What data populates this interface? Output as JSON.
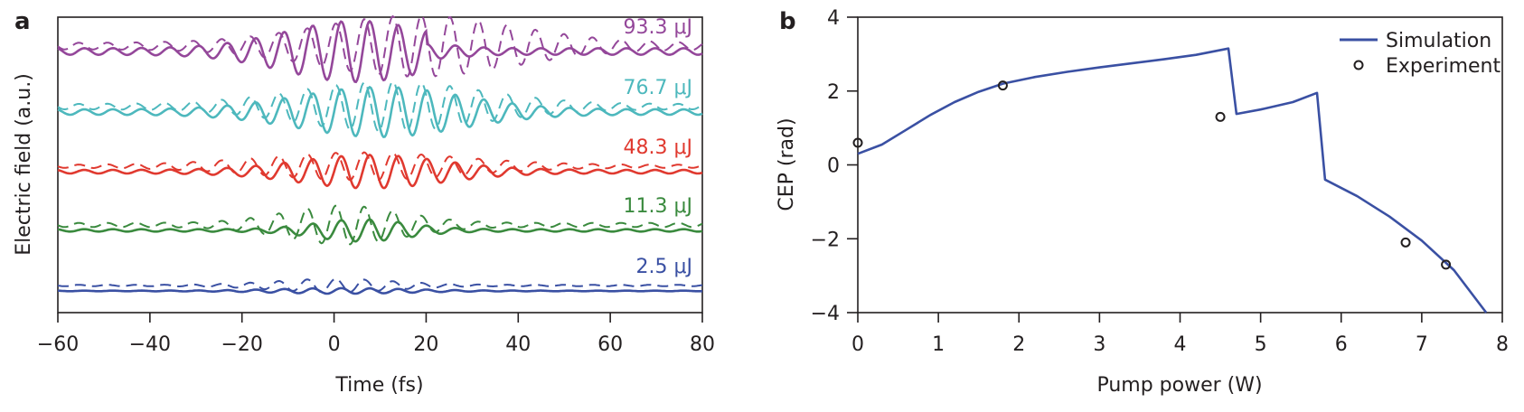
{
  "chart_data": [
    {
      "panel": "a",
      "type": "line",
      "title": "",
      "xlabel": "Time (fs)",
      "ylabel": "Electric field (a.u.)",
      "xlim": [
        -60,
        80
      ],
      "xticks": [
        -60,
        -40,
        -20,
        0,
        20,
        40,
        60,
        80
      ],
      "xtick_labels": [
        "−60",
        "−40",
        "−20",
        "0",
        "20",
        "40",
        "60",
        "80"
      ],
      "grid": false,
      "line_styles": {
        "solid": "simulation",
        "dashed": "reference"
      },
      "series": [
        {
          "name": "93.3 μJ",
          "color": "#94479a",
          "offset": 4,
          "amp_solid": 0.55,
          "amp_dashed": 0.55,
          "center_solid": 5,
          "center_dashed": 18,
          "width_solid": 22,
          "width_dashed": 30,
          "cut_solid_after": 20
        },
        {
          "name": "76.7 μJ",
          "color": "#4db8bd",
          "offset": 3,
          "amp_solid": 0.45,
          "amp_dashed": 0.45,
          "center_solid": 10,
          "center_dashed": 12,
          "width_solid": 25,
          "width_dashed": 28,
          "cut_solid_after": null
        },
        {
          "name": "48.3 μJ",
          "color": "#e0392f",
          "offset": 2,
          "amp_solid": 0.3,
          "amp_dashed": 0.25,
          "center_solid": 8,
          "center_dashed": 6,
          "width_solid": 22,
          "width_dashed": 30,
          "cut_solid_after": null
        },
        {
          "name": "11.3 μJ",
          "color": "#3a8a3e",
          "offset": 1,
          "amp_solid": 0.2,
          "amp_dashed": 0.35,
          "center_solid": 6,
          "center_dashed": 2,
          "width_solid": 14,
          "width_dashed": 18,
          "cut_solid_after": null
        },
        {
          "name": "2.5 μJ",
          "color": "#3a50a3",
          "offset": 0,
          "amp_solid": 0.05,
          "amp_dashed": 0.12,
          "center_solid": 2,
          "center_dashed": 0,
          "width_solid": 20,
          "width_dashed": 18,
          "cut_solid_after": null
        }
      ]
    },
    {
      "panel": "b",
      "type": "line",
      "title": "",
      "xlabel": "Pump power (W)",
      "ylabel": "CEP (rad)",
      "xlim": [
        0,
        8
      ],
      "ylim": [
        -4,
        4
      ],
      "xticks": [
        0,
        1,
        2,
        3,
        4,
        5,
        6,
        7,
        8
      ],
      "xtick_labels": [
        "0",
        "1",
        "2",
        "3",
        "4",
        "5",
        "6",
        "7",
        "8"
      ],
      "yticks": [
        -4,
        -2,
        0,
        2,
        4
      ],
      "ytick_labels": [
        "−4",
        "−2",
        "0",
        "2",
        "4"
      ],
      "grid": false,
      "legend_position": "top-right",
      "series": [
        {
          "name": "Simulation",
          "kind": "line",
          "color": "#3a50a3",
          "x": [
            0,
            0.3,
            0.6,
            0.9,
            1.2,
            1.5,
            1.8,
            2.2,
            2.6,
            3.0,
            3.4,
            3.8,
            4.2,
            4.6,
            4.7,
            5.0,
            5.4,
            5.7,
            5.8,
            6.2,
            6.6,
            7.0,
            7.4,
            7.8
          ],
          "y": [
            0.3,
            0.55,
            0.95,
            1.35,
            1.7,
            1.98,
            2.2,
            2.38,
            2.52,
            2.64,
            2.75,
            2.86,
            2.98,
            3.15,
            1.38,
            1.5,
            1.7,
            1.95,
            -0.4,
            -0.85,
            -1.4,
            -2.05,
            -2.85,
            -4.0
          ]
        },
        {
          "name": "Experiment",
          "kind": "scatter",
          "color": "#231f20",
          "x": [
            0,
            1.8,
            4.5,
            6.8,
            7.3
          ],
          "y": [
            0.6,
            2.15,
            1.3,
            -2.1,
            -2.7
          ]
        }
      ]
    }
  ],
  "panel_labels": {
    "a": "a",
    "b": "b"
  }
}
